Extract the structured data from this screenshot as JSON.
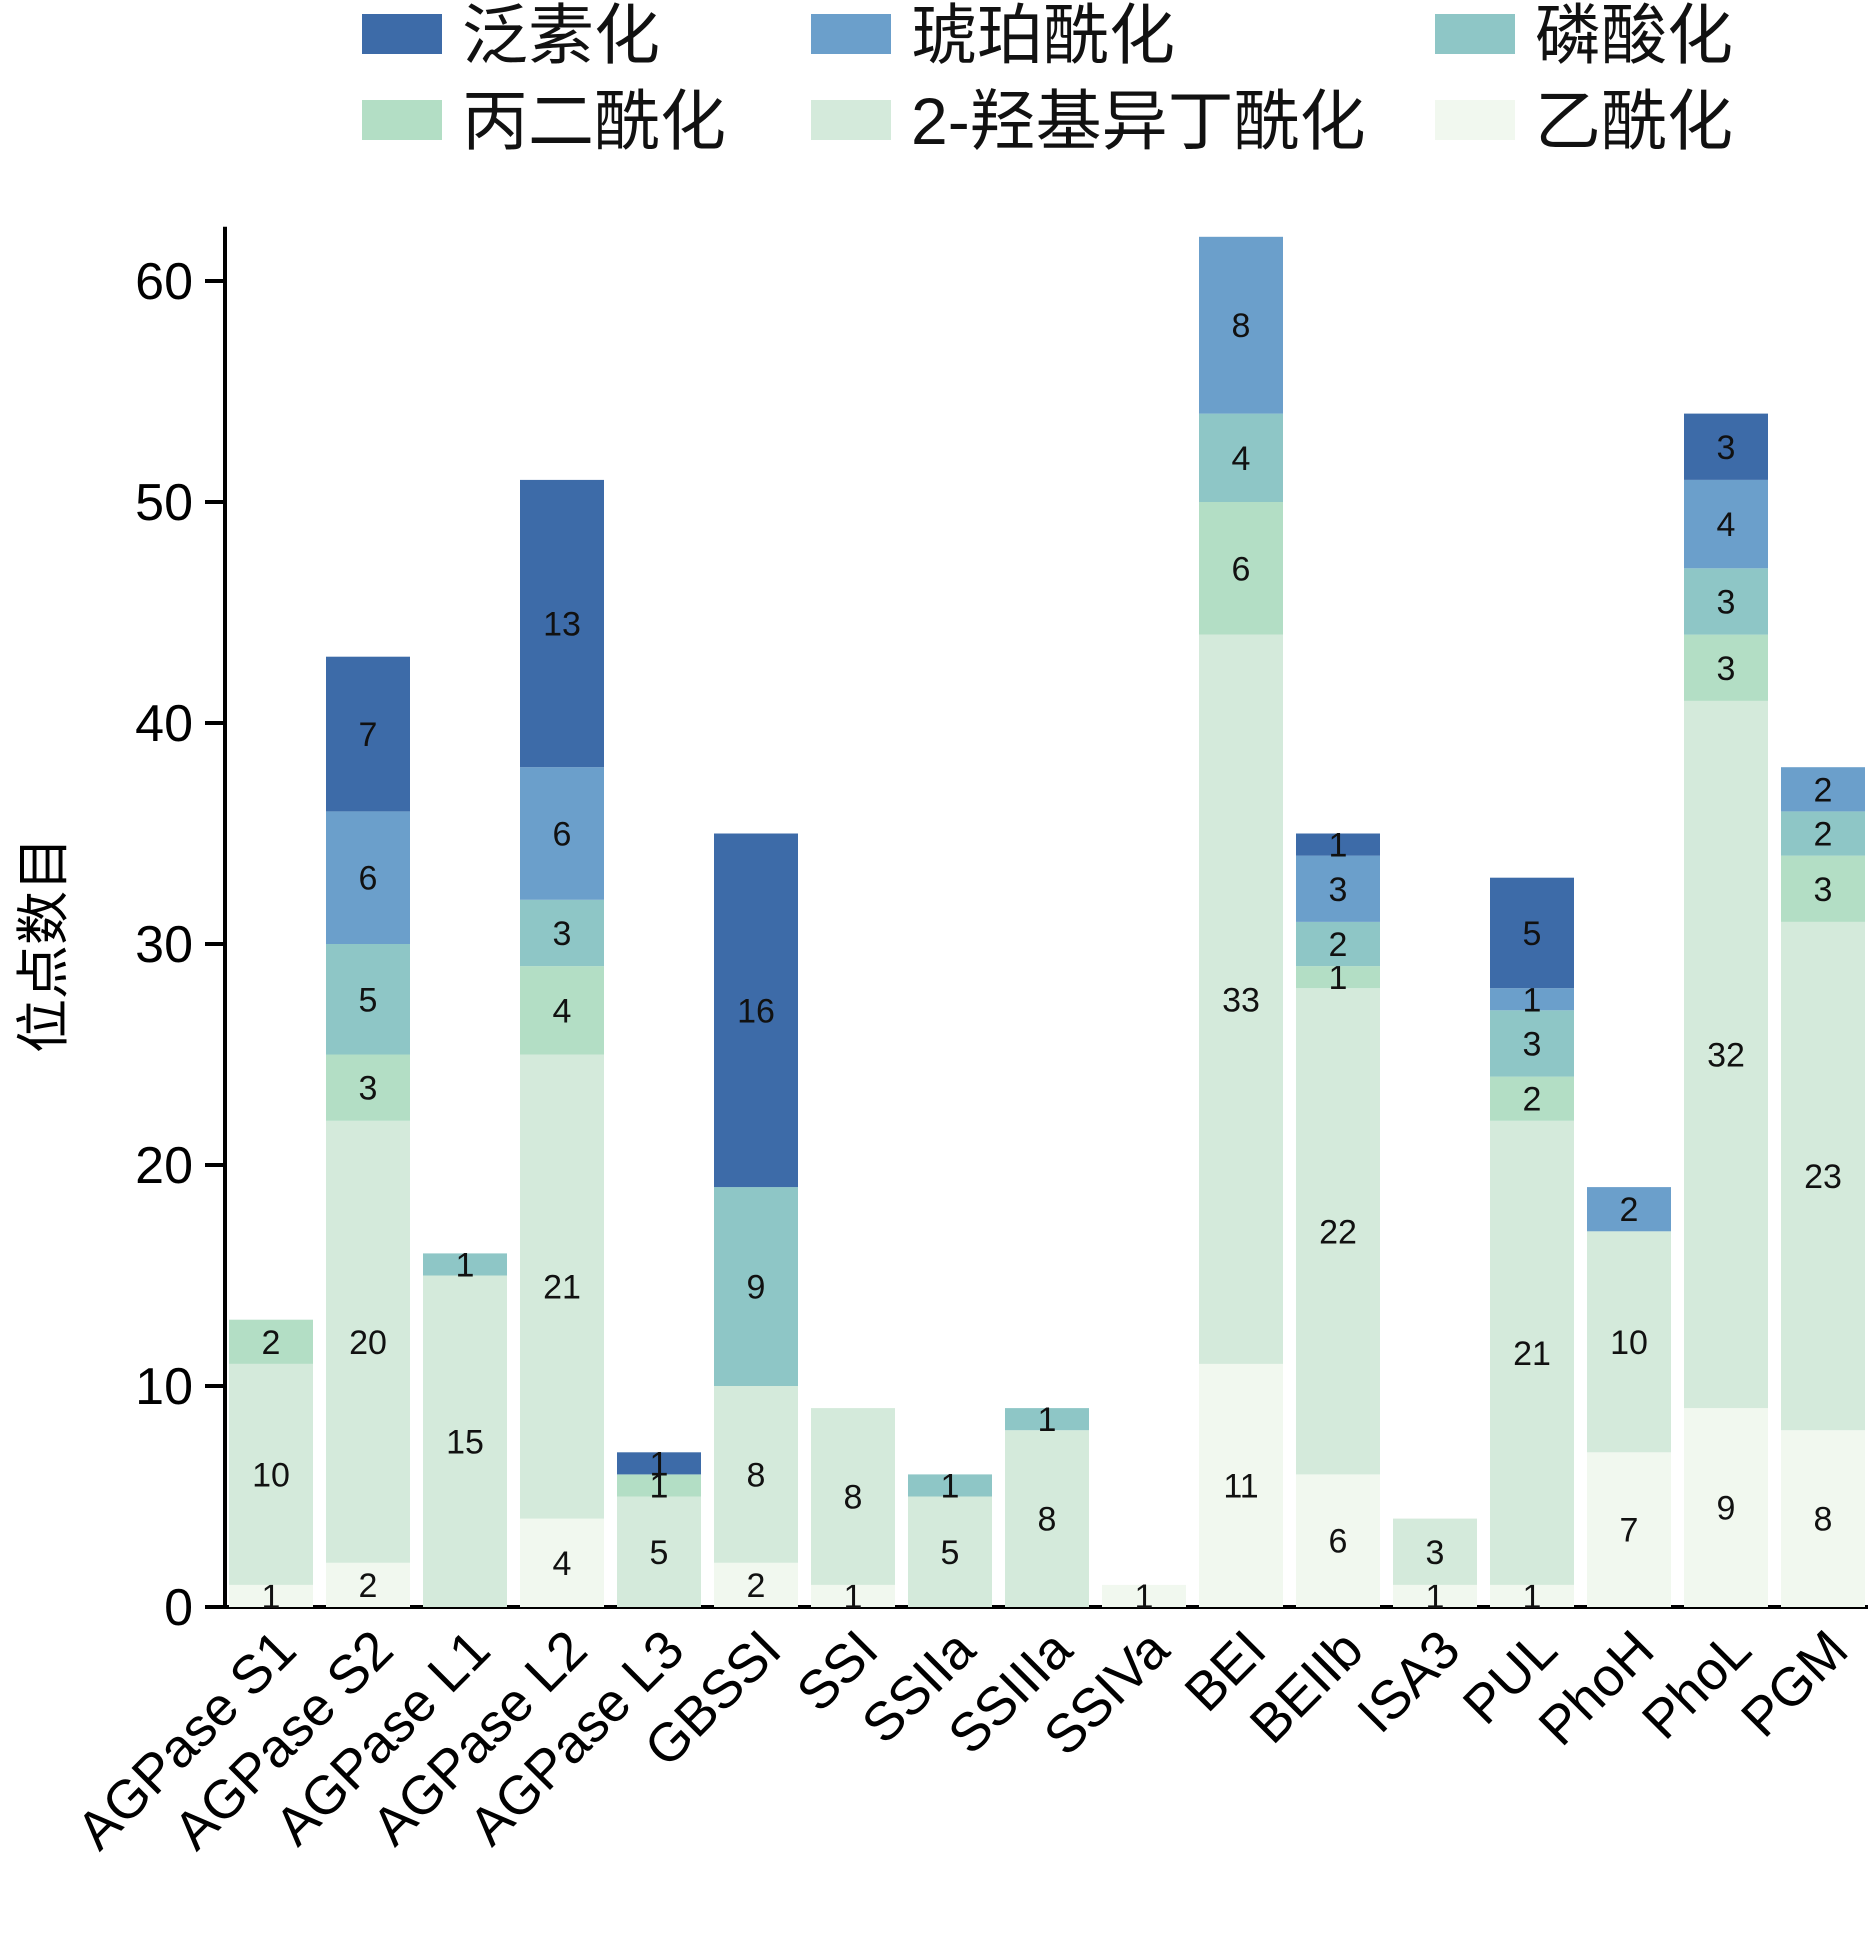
{
  "chart_data": {
    "type": "bar",
    "stacked": true,
    "title": "",
    "xlabel": "",
    "ylabel": "位点数目",
    "ylim": [
      0,
      62
    ],
    "yticks": [
      0,
      10,
      20,
      30,
      40,
      50,
      60
    ],
    "grid": false,
    "legend_position": "top",
    "categories": [
      "AGPase S1",
      "AGPase S2",
      "AGPase L1",
      "AGPase L2",
      "AGPase L3",
      "GBSSI",
      "SSI",
      "SSIIa",
      "SSIIIa",
      "SSIVa",
      "BEI",
      "BEIIb",
      "ISA3",
      "PUL",
      "PhoH",
      "PhoL",
      "PGM"
    ],
    "series": [
      {
        "name": "乙酰化",
        "color": "#f1f8ef",
        "values": [
          1,
          2,
          0,
          4,
          0,
          2,
          1,
          0,
          0,
          1,
          11,
          6,
          1,
          1,
          7,
          9,
          8
        ]
      },
      {
        "name": "2-羟基异丁酰化",
        "color": "#d4eadb",
        "values": [
          10,
          20,
          15,
          21,
          5,
          8,
          8,
          5,
          8,
          0,
          33,
          22,
          3,
          21,
          10,
          32,
          23
        ]
      },
      {
        "name": "丙二酰化",
        "color": "#b3dec5",
        "values": [
          2,
          3,
          0,
          4,
          1,
          0,
          0,
          0,
          0,
          0,
          6,
          1,
          0,
          2,
          0,
          3,
          3
        ]
      },
      {
        "name": "磷酸化",
        "color": "#8ec6c6",
        "values": [
          0,
          5,
          1,
          3,
          0,
          9,
          0,
          1,
          1,
          0,
          4,
          2,
          0,
          3,
          0,
          3,
          2
        ]
      },
      {
        "name": "琥珀酰化",
        "color": "#6b9fcb",
        "values": [
          0,
          6,
          0,
          6,
          0,
          0,
          0,
          0,
          0,
          0,
          8,
          3,
          0,
          1,
          2,
          4,
          2
        ]
      },
      {
        "name": "泛素化",
        "color": "#3d6ba8",
        "values": [
          0,
          7,
          0,
          13,
          1,
          16,
          0,
          0,
          0,
          0,
          0,
          1,
          0,
          5,
          0,
          3,
          0
        ]
      }
    ],
    "legend_order": [
      "泛素化",
      "琥珀酰化",
      "磷酸化",
      "丙二酰化",
      "2-羟基异丁酰化",
      "乙酰化"
    ]
  }
}
